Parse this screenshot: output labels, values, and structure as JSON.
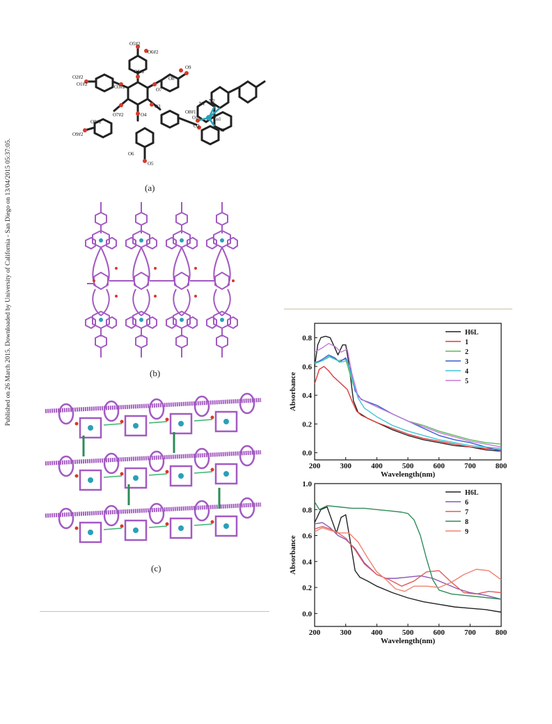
{
  "sidebar_note": "Published on 26 March 2015. Downloaded by University of California - San Diego on 13/04/2015 05:37:05.",
  "captions": {
    "a": "(a)",
    "b": "(b)",
    "c": "(c)"
  },
  "atom_labels": [
    "O5#2",
    "O6#2",
    "O2#2",
    "O1#2",
    "O3#2",
    "O4#2",
    "O9",
    "O8",
    "O7",
    "N1",
    "N2",
    "O8#1",
    "O1",
    "Cu1",
    "O3",
    "O4",
    "N3",
    "O2",
    "O8#2",
    "O7#2",
    "O9#2",
    "O6",
    "O5"
  ],
  "colors": {
    "structure": "#a35ac2",
    "copper": "#2aa0b8",
    "oxygen": "#d63a2a",
    "hbond": "#3cb371"
  },
  "chart_data": [
    {
      "type": "line",
      "title": "",
      "xlabel": "Wavelength(nm)",
      "ylabel": "Absorbance",
      "xlim": [
        200,
        800
      ],
      "ylim": [
        -0.05,
        0.9
      ],
      "xticks": [
        200,
        300,
        400,
        500,
        600,
        700,
        800
      ],
      "yticks": [
        0.0,
        0.2,
        0.4,
        0.6,
        0.8
      ],
      "legend_position": "top-right",
      "series": [
        {
          "name": "H6L",
          "color": "#222222",
          "x": [
            200,
            210,
            220,
            235,
            250,
            265,
            275,
            290,
            300,
            310,
            325,
            340,
            370,
            400,
            450,
            500,
            550,
            600,
            650,
            700,
            750,
            800
          ],
          "y": [
            0.6,
            0.75,
            0.8,
            0.81,
            0.8,
            0.73,
            0.68,
            0.75,
            0.75,
            0.62,
            0.36,
            0.28,
            0.24,
            0.21,
            0.16,
            0.12,
            0.09,
            0.07,
            0.05,
            0.04,
            0.02,
            0.01
          ]
        },
        {
          "name": "1",
          "color": "#e03a3a",
          "x": [
            200,
            215,
            230,
            245,
            260,
            275,
            290,
            305,
            320,
            335,
            350,
            400,
            450,
            500,
            550,
            600,
            650,
            700,
            750,
            800
          ],
          "y": [
            0.48,
            0.58,
            0.6,
            0.57,
            0.53,
            0.5,
            0.47,
            0.44,
            0.36,
            0.29,
            0.26,
            0.21,
            0.17,
            0.13,
            0.1,
            0.08,
            0.06,
            0.04,
            0.03,
            0.02
          ]
        },
        {
          "name": "2",
          "color": "#5cb85c",
          "x": [
            200,
            225,
            250,
            275,
            300,
            320,
            340,
            360,
            400,
            450,
            500,
            550,
            600,
            650,
            700,
            750,
            800
          ],
          "y": [
            0.63,
            0.64,
            0.67,
            0.64,
            0.65,
            0.5,
            0.39,
            0.36,
            0.32,
            0.27,
            0.22,
            0.19,
            0.15,
            0.12,
            0.09,
            0.07,
            0.06
          ]
        },
        {
          "name": "3",
          "color": "#3b5bd6",
          "x": [
            200,
            225,
            245,
            265,
            280,
            300,
            315,
            330,
            350,
            400,
            450,
            500,
            550,
            600,
            650,
            700,
            750,
            800
          ],
          "y": [
            0.62,
            0.65,
            0.68,
            0.66,
            0.63,
            0.66,
            0.58,
            0.43,
            0.37,
            0.33,
            0.27,
            0.22,
            0.17,
            0.12,
            0.09,
            0.07,
            0.04,
            0.01
          ]
        },
        {
          "name": "4",
          "color": "#3ec6d6",
          "x": [
            200,
            225,
            245,
            265,
            285,
            305,
            320,
            340,
            360,
            400,
            450,
            500,
            550,
            600,
            650,
            700,
            750,
            800
          ],
          "y": [
            0.62,
            0.64,
            0.67,
            0.65,
            0.63,
            0.64,
            0.52,
            0.38,
            0.31,
            0.25,
            0.19,
            0.15,
            0.12,
            0.09,
            0.07,
            0.05,
            0.04,
            0.03
          ]
        },
        {
          "name": "5",
          "color": "#c37bd6",
          "x": [
            200,
            225,
            245,
            265,
            285,
            305,
            320,
            340,
            360,
            400,
            450,
            500,
            550,
            600,
            650,
            700,
            750,
            800
          ],
          "y": [
            0.7,
            0.73,
            0.76,
            0.74,
            0.7,
            0.72,
            0.55,
            0.39,
            0.36,
            0.32,
            0.27,
            0.22,
            0.18,
            0.14,
            0.11,
            0.08,
            0.06,
            0.04
          ]
        }
      ]
    },
    {
      "type": "line",
      "title": "",
      "xlabel": "Wavelength(nm)",
      "ylabel": "Absorbance",
      "xlim": [
        200,
        800
      ],
      "ylim": [
        -0.1,
        1.0
      ],
      "xticks": [
        200,
        300,
        400,
        500,
        600,
        700,
        800
      ],
      "yticks": [
        0.0,
        0.2,
        0.4,
        0.6,
        0.8,
        1.0
      ],
      "legend_position": "top-right",
      "series": [
        {
          "name": "H6L",
          "color": "#222222",
          "x": [
            200,
            220,
            240,
            255,
            270,
            285,
            300,
            315,
            330,
            345,
            370,
            400,
            450,
            500,
            550,
            600,
            650,
            700,
            750,
            800
          ],
          "y": [
            0.7,
            0.8,
            0.82,
            0.72,
            0.62,
            0.74,
            0.76,
            0.55,
            0.33,
            0.28,
            0.25,
            0.21,
            0.16,
            0.12,
            0.09,
            0.07,
            0.05,
            0.04,
            0.03,
            0.01
          ]
        },
        {
          "name": "6",
          "color": "#8a55b8",
          "x": [
            200,
            225,
            250,
            275,
            300,
            330,
            360,
            400,
            430,
            460,
            500,
            540,
            580,
            620,
            660,
            700,
            750,
            800
          ],
          "y": [
            0.69,
            0.7,
            0.66,
            0.6,
            0.57,
            0.5,
            0.39,
            0.3,
            0.27,
            0.27,
            0.28,
            0.29,
            0.27,
            0.23,
            0.19,
            0.16,
            0.14,
            0.11
          ]
        },
        {
          "name": "7",
          "color": "#e15b5b",
          "x": [
            200,
            225,
            250,
            275,
            300,
            330,
            360,
            400,
            440,
            480,
            520,
            560,
            600,
            640,
            680,
            720,
            760,
            800
          ],
          "y": [
            0.65,
            0.67,
            0.65,
            0.62,
            0.58,
            0.49,
            0.38,
            0.3,
            0.26,
            0.21,
            0.25,
            0.32,
            0.33,
            0.24,
            0.16,
            0.15,
            0.17,
            0.16
          ]
        },
        {
          "name": "8",
          "color": "#2e8b57",
          "x": [
            200,
            215,
            240,
            280,
            320,
            360,
            400,
            440,
            480,
            500,
            520,
            540,
            560,
            580,
            600,
            640,
            680,
            720,
            760,
            800
          ],
          "y": [
            0.86,
            0.8,
            0.83,
            0.82,
            0.81,
            0.81,
            0.8,
            0.79,
            0.78,
            0.77,
            0.72,
            0.6,
            0.42,
            0.26,
            0.18,
            0.15,
            0.14,
            0.13,
            0.12,
            0.11
          ]
        },
        {
          "name": "9",
          "color": "#f08070",
          "x": [
            200,
            225,
            250,
            280,
            310,
            340,
            370,
            400,
            430,
            460,
            490,
            520,
            560,
            600,
            640,
            680,
            720,
            760,
            800
          ],
          "y": [
            0.63,
            0.66,
            0.64,
            0.62,
            0.62,
            0.55,
            0.43,
            0.32,
            0.26,
            0.19,
            0.17,
            0.21,
            0.21,
            0.2,
            0.24,
            0.3,
            0.34,
            0.33,
            0.26
          ]
        }
      ]
    }
  ]
}
